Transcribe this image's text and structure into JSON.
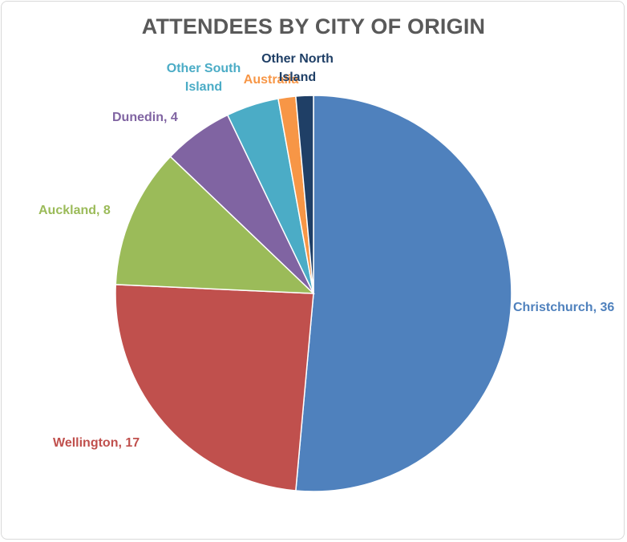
{
  "chart_data": {
    "type": "pie",
    "title": "ATTENDEES BY CITY OF ORIGIN",
    "slices": [
      {
        "label": "Christchurch",
        "value": 36,
        "color": "#4f81bd",
        "label_text": "Christchurch, 36"
      },
      {
        "label": "Wellington",
        "value": 17,
        "color": "#c0504d",
        "label_text": "Wellington, 17"
      },
      {
        "label": "Auckland",
        "value": 8,
        "color": "#9bbb59",
        "label_text": "Auckland, 8"
      },
      {
        "label": "Dunedin",
        "value": 4,
        "color": "#8064a2",
        "label_text": "Dunedin, 4"
      },
      {
        "label": "Other South Island",
        "value": 3,
        "color": "#4bacc6",
        "label_lines": [
          "Other South",
          "Island"
        ]
      },
      {
        "label": "Australia",
        "value": 1,
        "color": "#f79646",
        "label_lines": [
          "Australia"
        ]
      },
      {
        "label": "Other North Island",
        "value": 1,
        "color": "#1f3f66",
        "label_lines": [
          "Other North",
          "Island"
        ]
      }
    ],
    "legend": "none"
  }
}
